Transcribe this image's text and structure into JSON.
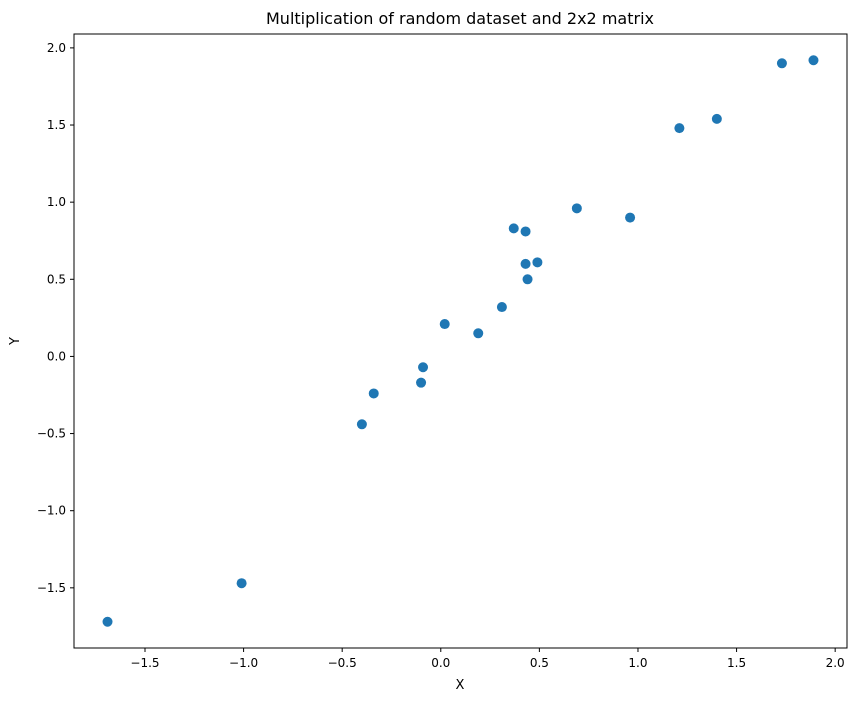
{
  "chart_data": {
    "type": "scatter",
    "title": "Multiplication of random dataset and 2x2 matrix",
    "xlabel": "X",
    "ylabel": "Y",
    "xlim": [
      -1.86,
      2.06
    ],
    "ylim": [
      -1.89,
      2.09
    ],
    "x_ticks": [
      -1.5,
      -1.0,
      -0.5,
      0.0,
      0.5,
      1.0,
      1.5,
      2.0
    ],
    "x_tick_labels": [
      "−1.5",
      "−1.0",
      "−0.5",
      "0.0",
      "0.5",
      "1.0",
      "1.5",
      "2.0"
    ],
    "y_ticks": [
      -1.5,
      -1.0,
      -0.5,
      0.0,
      0.5,
      1.0,
      1.5,
      2.0
    ],
    "y_tick_labels": [
      "−1.5",
      "−1.0",
      "−0.5",
      "0.0",
      "0.5",
      "1.0",
      "1.5",
      "2.0"
    ],
    "grid": false,
    "legend": "none",
    "marker_color": "#1f77b4",
    "points": [
      {
        "x": -1.69,
        "y": -1.72
      },
      {
        "x": -1.01,
        "y": -1.47
      },
      {
        "x": -0.4,
        "y": -0.44
      },
      {
        "x": -0.34,
        "y": -0.24
      },
      {
        "x": -0.1,
        "y": -0.17
      },
      {
        "x": -0.09,
        "y": -0.07
      },
      {
        "x": 0.02,
        "y": 0.21
      },
      {
        "x": 0.19,
        "y": 0.15
      },
      {
        "x": 0.31,
        "y": 0.32
      },
      {
        "x": 0.37,
        "y": 0.83
      },
      {
        "x": 0.43,
        "y": 0.81
      },
      {
        "x": 0.43,
        "y": 0.6
      },
      {
        "x": 0.44,
        "y": 0.5
      },
      {
        "x": 0.49,
        "y": 0.61
      },
      {
        "x": 0.69,
        "y": 0.96
      },
      {
        "x": 0.96,
        "y": 0.9
      },
      {
        "x": 1.21,
        "y": 1.48
      },
      {
        "x": 1.4,
        "y": 1.54
      },
      {
        "x": 1.73,
        "y": 1.9
      },
      {
        "x": 1.89,
        "y": 1.92
      }
    ]
  }
}
